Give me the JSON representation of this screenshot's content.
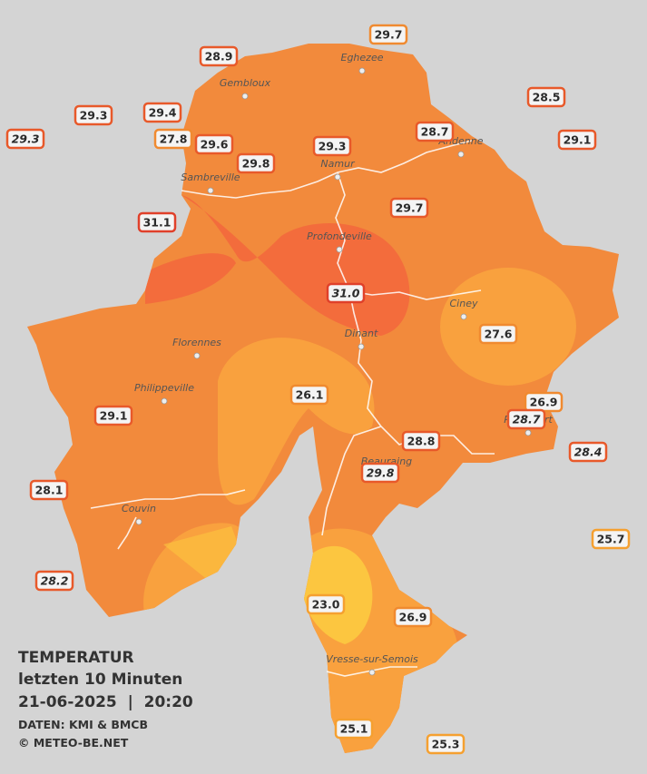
{
  "map": {
    "cities": [
      "Eghezee",
      "Gembloux",
      "Andenne",
      "Namur",
      "Sambreville",
      "Profondeville",
      "Ciney",
      "Dinant",
      "Florennes",
      "Philippeville",
      "Beauraing",
      "Rochefort",
      "Couvin",
      "Vresse-sur-Semois"
    ],
    "stations": [
      {
        "label": "29.7",
        "color": "#f08a30",
        "italic": false
      },
      {
        "label": "28.9",
        "color": "#e8592a",
        "italic": false
      },
      {
        "label": "29.3",
        "color": "#e8592a",
        "italic": false
      },
      {
        "label": "29.4",
        "color": "#e8592a",
        "italic": false
      },
      {
        "label": "29.3",
        "color": "#e8592a",
        "italic": true
      },
      {
        "label": "27.8",
        "color": "#f08a30",
        "italic": false
      },
      {
        "label": "29.6",
        "color": "#e8592a",
        "italic": false
      },
      {
        "label": "29.8",
        "color": "#e8592a",
        "italic": false
      },
      {
        "label": "29.3",
        "color": "#e8592a",
        "italic": false
      },
      {
        "label": "28.7",
        "color": "#e8592a",
        "italic": false
      },
      {
        "label": "28.5",
        "color": "#e8592a",
        "italic": false
      },
      {
        "label": "29.1",
        "color": "#e8592a",
        "italic": false
      },
      {
        "label": "29.7",
        "color": "#e8592a",
        "italic": false
      },
      {
        "label": "31.1",
        "color": "#e0402a",
        "italic": false
      },
      {
        "label": "31.0",
        "color": "#e0402a",
        "italic": true
      },
      {
        "label": "27.6",
        "color": "#f08a30",
        "italic": false
      },
      {
        "label": "26.1",
        "color": "#f08a30",
        "italic": false
      },
      {
        "label": "26.9",
        "color": "#f08a30",
        "italic": false
      },
      {
        "label": "28.7",
        "color": "#e8592a",
        "italic": true
      },
      {
        "label": "29.1",
        "color": "#e8592a",
        "italic": false
      },
      {
        "label": "28.8",
        "color": "#e8592a",
        "italic": false
      },
      {
        "label": "28.4",
        "color": "#e8592a",
        "italic": true
      },
      {
        "label": "29.8",
        "color": "#e8592a",
        "italic": true
      },
      {
        "label": "28.1",
        "color": "#e8592a",
        "italic": false
      },
      {
        "label": "25.7",
        "color": "#f5a030",
        "italic": false
      },
      {
        "label": "28.2",
        "color": "#e8592a",
        "italic": true
      },
      {
        "label": "23.0",
        "color": "#f5a030",
        "italic": false
      },
      {
        "label": "26.9",
        "color": "#f08a30",
        "italic": false
      },
      {
        "label": "25.1",
        "color": "#f5a030",
        "italic": false
      },
      {
        "label": "25.3",
        "color": "#f5a030",
        "italic": false
      }
    ],
    "legend": {
      "title": "TEMPERATUR",
      "subtitle": "letzten 10 Minuten",
      "datetime": "21-06-2025  |  20:20",
      "source": "DATEN: KMI & BMCB",
      "copyright": "© METEO-BE.NET"
    }
  }
}
